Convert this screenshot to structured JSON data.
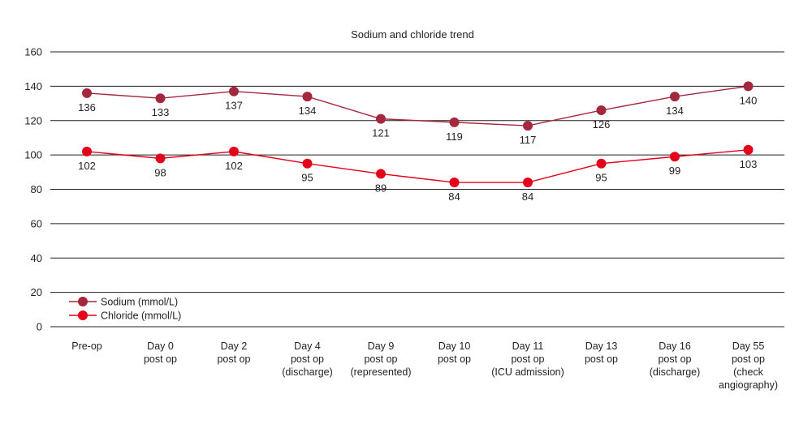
{
  "chart_data": {
    "type": "line",
    "title": "Sodium and chloride trend",
    "xlabel": "",
    "ylabel": "",
    "ylim": [
      0,
      160
    ],
    "yticks": [
      0,
      20,
      40,
      60,
      80,
      100,
      120,
      140,
      160
    ],
    "grid": true,
    "legend_position": "bottom-left",
    "categories": [
      [
        "Pre-op"
      ],
      [
        "Day 0",
        "post op"
      ],
      [
        "Day 2",
        "post op"
      ],
      [
        "Day 4",
        "post op",
        "(discharge)"
      ],
      [
        "Day 9",
        "post op",
        "(represented)"
      ],
      [
        "Day 10",
        "post op"
      ],
      [
        "Day 11",
        "post op",
        "(ICU admission)"
      ],
      [
        "Day 13",
        "post op"
      ],
      [
        "Day 16",
        "post op",
        "(discharge)"
      ],
      [
        "Day 55",
        "post op",
        "(check",
        "angiography)"
      ]
    ],
    "series": [
      {
        "name": "Sodium (mmol/L)",
        "color": "#a4283d",
        "values": [
          136,
          133,
          137,
          134,
          121,
          119,
          117,
          126,
          134,
          140
        ]
      },
      {
        "name": "Chloride (mmol/L)",
        "color": "#e2001a",
        "values": [
          102,
          98,
          102,
          95,
          89,
          84,
          84,
          95,
          99,
          103
        ]
      }
    ]
  }
}
